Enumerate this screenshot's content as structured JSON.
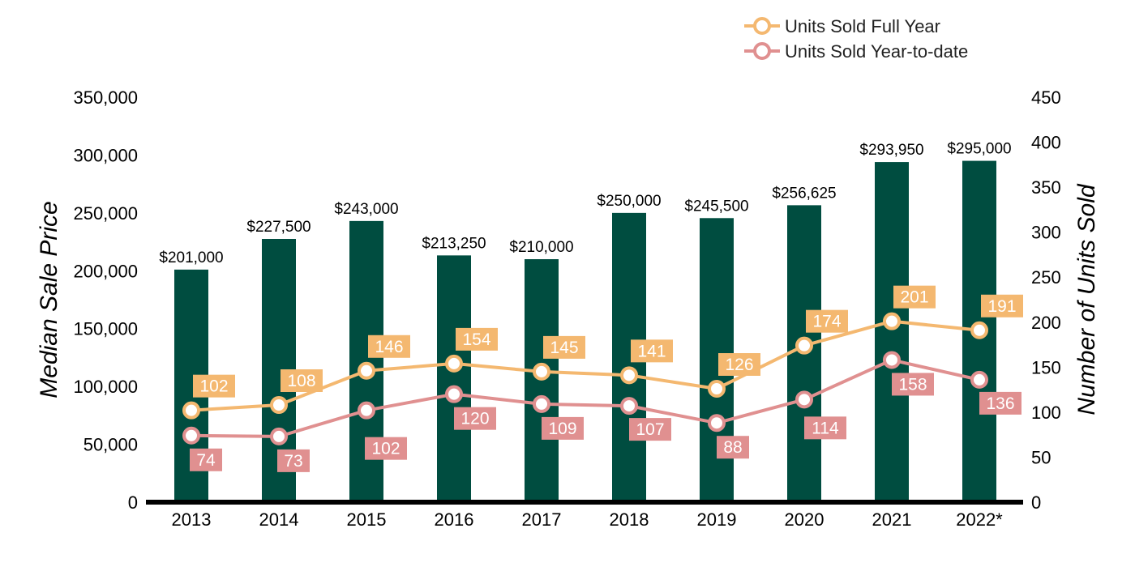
{
  "chart_data": {
    "type": "bar",
    "categories": [
      "2013",
      "2014",
      "2015",
      "2016",
      "2017",
      "2018",
      "2019",
      "2020",
      "2021",
      "2022*"
    ],
    "bars": {
      "name": "",
      "values": [
        201000,
        227500,
        243000,
        213250,
        210000,
        250000,
        245500,
        256625,
        293950,
        295000
      ],
      "labels": [
        "$201,000",
        "$227,500",
        "$243,000",
        "$213,250",
        "$210,000",
        "$250,000",
        "$245,500",
        "$256,625",
        "$293,950",
        "$295,000"
      ],
      "color": "#004d40"
    },
    "series": [
      {
        "name": "Units Sold Full Year",
        "type": "line",
        "axis": "right",
        "values": [
          102,
          108,
          146,
          154,
          145,
          141,
          126,
          174,
          201,
          191
        ],
        "color": "#f4b870"
      },
      {
        "name": "Units Sold Year-to-date",
        "type": "line",
        "axis": "right",
        "values": [
          74,
          73,
          102,
          120,
          109,
          107,
          88,
          114,
          158,
          136
        ],
        "color": "#e09090"
      }
    ],
    "y_left": {
      "label": "Median Sale Price",
      "min": 0,
      "max": 350000,
      "ticks": [
        0,
        50000,
        100000,
        150000,
        200000,
        250000,
        300000,
        350000
      ],
      "tick_labels": [
        "0",
        "50,000",
        "100,000",
        "150,000",
        "200,000",
        "250,000",
        "300,000",
        "350,000"
      ]
    },
    "y_right": {
      "label": "Number of Units Sold",
      "min": 0,
      "max": 450,
      "ticks": [
        0,
        50,
        100,
        150,
        200,
        250,
        300,
        350,
        400,
        450
      ],
      "tick_labels": [
        "0",
        "50",
        "100",
        "150",
        "200",
        "250",
        "300",
        "350",
        "400",
        "450"
      ]
    },
    "legend": {
      "position": "top-right",
      "entries": [
        "Units Sold Full Year",
        "Units Sold Year-to-date"
      ]
    },
    "grid": false,
    "colors": {
      "bar": "#004d40",
      "full_year": "#f4b870",
      "ytd": "#e09090",
      "axis": "#000000"
    }
  }
}
